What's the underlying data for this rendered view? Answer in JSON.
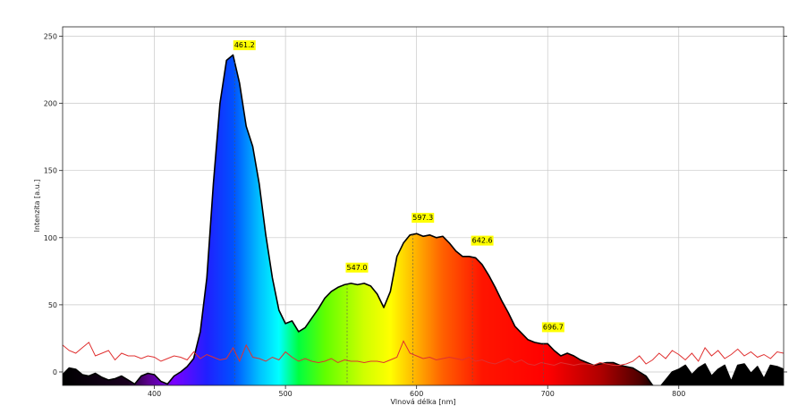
{
  "chart_data": {
    "type": "area",
    "xlabel": "Vlnová délka [nm]",
    "ylabel": "Intenzita [a.u.]",
    "xlim": [
      330,
      880
    ],
    "ylim": [
      -10,
      257
    ],
    "xticks": [
      400,
      500,
      600,
      700,
      800
    ],
    "yticks": [
      0,
      50,
      100,
      150,
      200,
      250
    ],
    "grid": true,
    "fill": "visible-spectrum-gradient",
    "series": [
      {
        "role": "spectrum",
        "color": "#000000",
        "x": [
          330,
          335,
          340,
          345,
          350,
          355,
          360,
          365,
          370,
          375,
          380,
          385,
          390,
          395,
          400,
          405,
          410,
          415,
          420,
          425,
          430,
          435,
          440,
          445,
          450,
          455,
          460,
          465,
          470,
          475,
          480,
          485,
          490,
          495,
          500,
          505,
          510,
          515,
          520,
          525,
          530,
          535,
          540,
          545,
          550,
          555,
          560,
          565,
          570,
          575,
          580,
          585,
          590,
          595,
          600,
          605,
          610,
          615,
          620,
          625,
          630,
          635,
          640,
          645,
          650,
          655,
          660,
          665,
          670,
          675,
          680,
          685,
          690,
          695,
          700,
          705,
          710,
          715,
          720,
          725,
          730,
          735,
          740,
          745,
          750,
          755,
          760,
          765,
          770,
          775,
          780,
          785,
          790,
          795,
          800,
          805,
          810,
          815,
          820,
          825,
          830,
          835,
          840,
          845,
          850,
          855,
          860,
          865,
          870,
          875,
          880
        ],
        "y": [
          -2,
          3,
          2,
          -2,
          -3,
          -1,
          -4,
          -6,
          -5,
          -3,
          -6,
          -9,
          -3,
          -1,
          -2,
          -7,
          -9,
          -3,
          0,
          4,
          10,
          30,
          70,
          140,
          200,
          232,
          236,
          215,
          183,
          168,
          140,
          102,
          70,
          46,
          36,
          38,
          30,
          33,
          40,
          47,
          55,
          60,
          63,
          65,
          66,
          65,
          66,
          64,
          58,
          48,
          60,
          86,
          96,
          102,
          103,
          101,
          102,
          100,
          101,
          96,
          90,
          86,
          86,
          85,
          80,
          72,
          63,
          53,
          44,
          34,
          29,
          24,
          22,
          21,
          21,
          16,
          12,
          14,
          12,
          9,
          7,
          5,
          6,
          7,
          7,
          5,
          4,
          3,
          0,
          -3,
          -10,
          -12,
          -6,
          0,
          2,
          5,
          -2,
          3,
          6,
          -3,
          2,
          5,
          -7,
          5,
          6,
          -1,
          4,
          -5,
          5,
          4,
          2
        ]
      },
      {
        "role": "reference",
        "color": "#e03030",
        "x": [
          330,
          335,
          340,
          345,
          350,
          355,
          360,
          365,
          370,
          375,
          380,
          385,
          390,
          395,
          400,
          405,
          410,
          415,
          420,
          425,
          430,
          435,
          440,
          445,
          450,
          455,
          460,
          465,
          470,
          475,
          480,
          485,
          490,
          495,
          500,
          505,
          510,
          515,
          520,
          525,
          530,
          535,
          540,
          545,
          550,
          555,
          560,
          565,
          570,
          575,
          580,
          585,
          590,
          595,
          600,
          605,
          610,
          615,
          620,
          625,
          630,
          635,
          640,
          645,
          650,
          655,
          660,
          665,
          670,
          675,
          680,
          685,
          690,
          695,
          700,
          705,
          710,
          715,
          720,
          725,
          730,
          735,
          740,
          745,
          750,
          755,
          760,
          765,
          770,
          775,
          780,
          785,
          790,
          795,
          800,
          805,
          810,
          815,
          820,
          825,
          830,
          835,
          840,
          845,
          850,
          855,
          860,
          865,
          870,
          875,
          880
        ],
        "y": [
          20,
          16,
          14,
          18,
          22,
          12,
          14,
          16,
          9,
          14,
          12,
          12,
          10,
          12,
          11,
          8,
          10,
          12,
          11,
          9,
          15,
          10,
          13,
          11,
          9,
          10,
          18,
          8,
          20,
          11,
          10,
          8,
          11,
          9,
          15,
          11,
          8,
          10,
          8,
          7,
          8,
          10,
          7,
          9,
          8,
          8,
          7,
          8,
          8,
          7,
          9,
          11,
          23,
          14,
          12,
          10,
          11,
          9,
          10,
          11,
          10,
          9,
          11,
          8,
          9,
          7,
          6,
          8,
          10,
          7,
          9,
          6,
          5,
          7,
          6,
          5,
          7,
          6,
          5,
          6,
          6,
          5,
          7,
          6,
          5,
          5,
          6,
          8,
          12,
          6,
          9,
          14,
          10,
          16,
          13,
          9,
          14,
          8,
          18,
          12,
          16,
          10,
          13,
          17,
          12,
          15,
          11,
          13,
          10,
          15,
          14
        ]
      }
    ],
    "peaks": [
      {
        "x": 461.2,
        "label": "461.2"
      },
      {
        "x": 547.0,
        "label": "547.0"
      },
      {
        "x": 597.3,
        "label": "597.3"
      },
      {
        "x": 642.6,
        "label": "642.6"
      },
      {
        "x": 696.7,
        "label": "696.7"
      }
    ]
  },
  "colors": {
    "label_box": "#ffff00",
    "grid": "#c8c8c8",
    "curve": "#000000",
    "reference": "#e03030"
  }
}
